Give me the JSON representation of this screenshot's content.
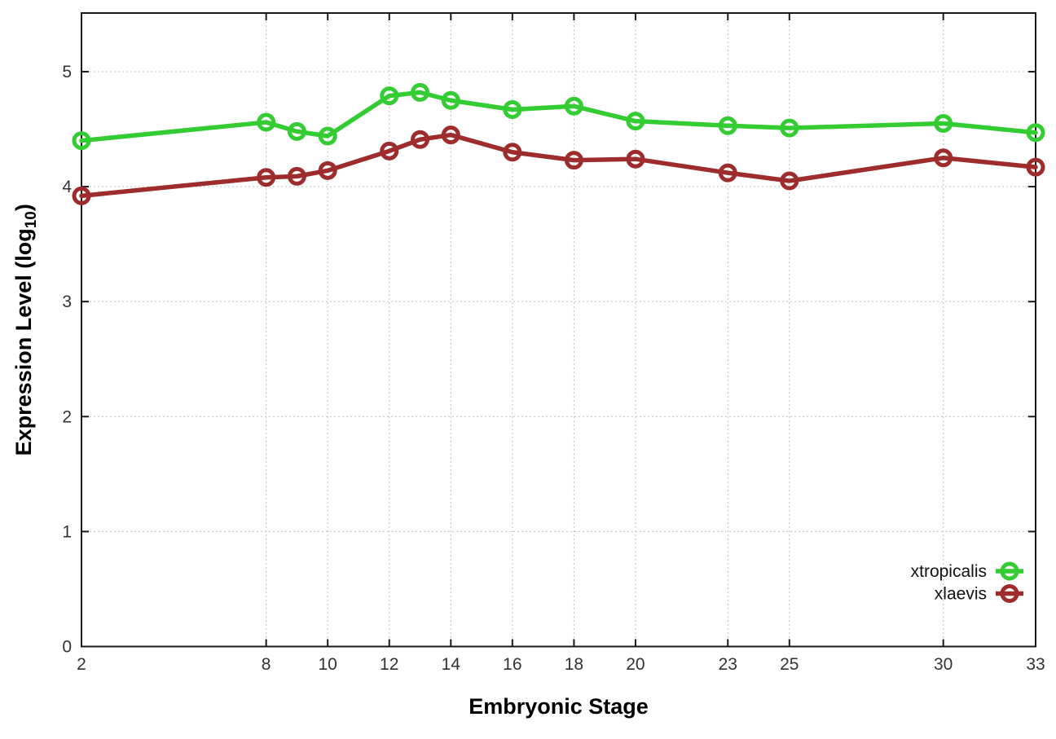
{
  "chart_data": {
    "type": "line",
    "title": "",
    "xlabel": "Embryonic Stage",
    "ylabel": {
      "text": "Expression Level (log",
      "sub": "10",
      "suffix": ")"
    },
    "x": [
      2,
      8,
      9,
      10,
      12,
      13,
      14,
      16,
      18,
      20,
      23,
      25,
      30,
      33
    ],
    "series": [
      {
        "name": "xtropicalis",
        "color": "#33cc33",
        "values": [
          4.4,
          4.56,
          4.48,
          4.44,
          4.79,
          4.82,
          4.75,
          4.67,
          4.7,
          4.57,
          4.53,
          4.51,
          4.55,
          4.47
        ]
      },
      {
        "name": "xlaevis",
        "color": "#9e2c2c",
        "values": [
          3.92,
          4.08,
          4.09,
          4.14,
          4.31,
          4.41,
          4.45,
          4.3,
          4.23,
          4.24,
          4.12,
          4.05,
          4.25,
          4.17
        ]
      }
    ],
    "x_ticks": [
      2,
      8,
      10,
      12,
      14,
      16,
      18,
      20,
      23,
      25,
      30,
      33
    ],
    "y_ticks": [
      0,
      1,
      2,
      3,
      4,
      5
    ],
    "xlim": [
      2,
      33
    ],
    "ylim": [
      0,
      5.51
    ],
    "grid": true,
    "legend_position": "inside-bottom-right",
    "marker": "open-circle",
    "border_color": "#1a1a1a",
    "grid_color": "#c0c0c0",
    "tick_label_color": "#333333"
  }
}
